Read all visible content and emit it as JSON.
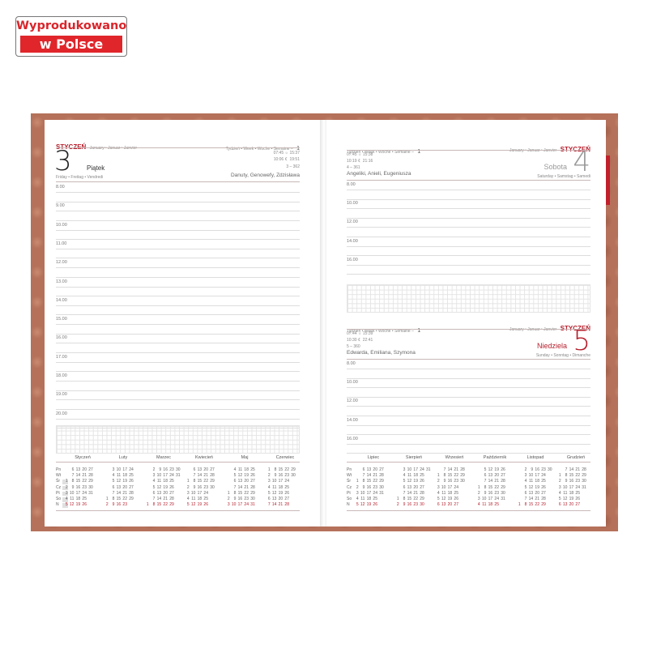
{
  "badge": {
    "line1": "Wyprodukowano",
    "line2": "w Polsce"
  },
  "left_page": {
    "month": "STYCZEŃ",
    "month_translations": "January • Januar • Janvier",
    "week": "Tydzień • Week • Woche • Semaine –",
    "week_no": "1",
    "day_number": "3",
    "day_name": "Piątek",
    "day_translations": "Friday • Freitag • Vendredi",
    "sunrise": "07:45",
    "sunset": "15:37",
    "moonrise": "10:06",
    "moonset": "19:51",
    "day_of_year": "3 – 362",
    "name_days": "Danuty, Genowefy, Zdzisława",
    "hours": [
      "8.00",
      "9.00",
      "10.00",
      "11.00",
      "12.00",
      "13.00",
      "14.00",
      "15.00",
      "16.00",
      "17.00",
      "18.00",
      "19.00",
      "20.00"
    ],
    "months": [
      "Styczeń",
      "Luty",
      "Marzec",
      "Kwiecień",
      "Maj",
      "Czerwiec"
    ]
  },
  "right_page": {
    "saturday": {
      "week": "Tydzień • Week • Woche • Semaine –",
      "week_no": "1",
      "month": "STYCZEŃ",
      "month_translations": "January • Januar • Janvier",
      "sunrise": "07:45",
      "sunset": "15:38",
      "moonrise": "10:19",
      "moonset": "21:16",
      "day_of_year": "4 – 361",
      "name_days": "Angeliki, Anieli, Eugeniusza",
      "day_number": "4",
      "day_name": "Sobota",
      "day_translations": "Saturday • Samstag • Samedi",
      "hours": [
        "8.00",
        "10.00",
        "12.00",
        "14.00",
        "16.00"
      ]
    },
    "sunday": {
      "week": "Tydzień • Week • Woche • Semaine –",
      "week_no": "1",
      "month": "STYCZEŃ",
      "month_translations": "January • Januar • Janvier",
      "sunrise": "07:44",
      "sunset": "15:39",
      "moonrise": "10:30",
      "moonset": "22:41",
      "day_of_year": "5 – 360",
      "name_days": "Edwarda, Emiliana, Szymona",
      "day_number": "5",
      "day_name": "Niedziela",
      "day_translations": "Sunday • Sonntag • Dimanche",
      "hours": [
        "8.00",
        "10.00",
        "12.00",
        "14.00",
        "16.00"
      ]
    },
    "tab": "I",
    "months": [
      "Lipiec",
      "Sierpień",
      "Wrzesień",
      "Październik",
      "Listopad",
      "Grudzień"
    ]
  },
  "weekdays": [
    "Pn",
    "Wt",
    "Śr",
    "Cz",
    "Pt",
    "So",
    "N"
  ],
  "colors": {
    "accent": "#b51d2a",
    "cover": "#b5715a",
    "badge_red": "#e0262b"
  }
}
